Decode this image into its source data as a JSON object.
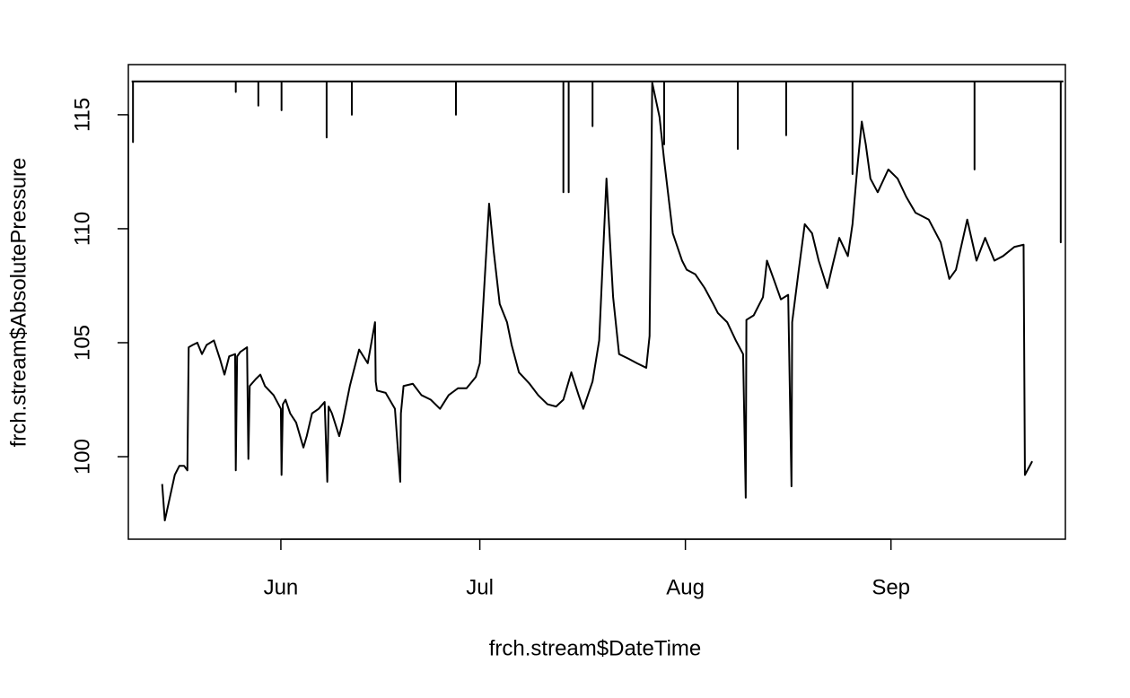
{
  "chart_data": {
    "type": "line",
    "x_label": "frch.stream$DateTime",
    "y_label": "frch.stream$AbsolutePressure",
    "xlim": [
      -23,
      118.3
    ],
    "ylim": [
      96.38,
      117.2
    ],
    "xticks": [
      {
        "value": 0,
        "label": "Jun"
      },
      {
        "value": 30,
        "label": "Jul"
      },
      {
        "value": 61,
        "label": "Aug"
      },
      {
        "value": 92,
        "label": "Sep"
      }
    ],
    "yticks": [
      100,
      105,
      110,
      115
    ],
    "series": [
      {
        "color": "#000000",
        "x": [
          -17.9,
          -17.5,
          -16.6,
          -16.0,
          -15.3,
          -14.6,
          -14.1,
          -13.9,
          -13.3,
          -12.6,
          -11.9,
          -11.2,
          -10.1,
          -9.2,
          -8.5,
          -7.8,
          -6.9,
          -6.8,
          -6.6,
          -6.1,
          -5.1,
          -4.9,
          -4.7,
          -3.8,
          -3.1,
          -2.4,
          -1.1,
          0,
          0.1,
          0.3,
          0.7,
          1.4,
          2.3,
          3.4,
          3.9,
          4.7,
          5.7,
          6.6,
          7.0,
          7.2,
          7.7,
          8.8,
          9.3,
          10.4,
          11.8,
          13.1,
          14.2,
          14.3,
          14.5,
          15.8,
          17.2,
          18.0,
          18.1,
          18.5,
          19.9,
          21.2,
          22.6,
          24.0,
          25.3,
          26.7,
          28.0,
          29.4,
          30.0,
          31.4,
          32.1,
          33.0,
          34.1,
          34.8,
          35.9,
          37.5,
          38.8,
          40.2,
          41.5,
          42.6,
          43.8,
          44.9,
          45.6,
          47.0,
          48.0,
          49.1,
          50.1,
          51.0,
          52.4,
          53.7,
          55.1,
          55.6,
          56.0,
          57.1,
          57.8,
          59.1,
          60.5,
          61.2,
          62.5,
          63.9,
          65.2,
          65.9,
          67.3,
          68.6,
          69.7,
          70.1,
          70.2,
          71.3,
          72.7,
          73.3,
          74.3,
          75.4,
          76.5,
          77.0,
          77.1,
          78.1,
          79.0,
          80.1,
          81.1,
          82.4,
          83.2,
          84.2,
          85.5,
          86.2,
          86.9,
          87.6,
          88.2,
          88.9,
          90.0,
          91.6,
          93.0,
          94.3,
          95.7,
          97.7,
          99.5,
          100.8,
          101.8,
          103.5,
          104.9,
          106.2,
          107.6,
          108.9,
          110.6,
          112.0,
          112.2,
          113.3
        ],
        "values": [
          98.8,
          97.2,
          98.4,
          99.2,
          99.6,
          99.6,
          99.4,
          104.8,
          104.9,
          105.0,
          104.5,
          104.9,
          105.1,
          104.3,
          103.6,
          104.4,
          104.5,
          99.4,
          104.4,
          104.6,
          104.8,
          99.9,
          103.1,
          103.4,
          103.6,
          103.1,
          102.7,
          102.1,
          99.2,
          102.3,
          102.5,
          101.9,
          101.5,
          100.4,
          100.9,
          101.9,
          102.1,
          102.4,
          98.9,
          102.2,
          101.9,
          100.9,
          101.5,
          103.1,
          104.7,
          104.1,
          105.9,
          103.3,
          102.9,
          102.8,
          102.1,
          98.9,
          101.9,
          103.1,
          103.2,
          102.7,
          102.5,
          102.1,
          102.7,
          103.0,
          103.0,
          103.5,
          104.1,
          111.1,
          109.0,
          106.7,
          105.9,
          104.9,
          103.7,
          103.2,
          102.7,
          102.3,
          102.2,
          102.5,
          103.7,
          102.7,
          102.1,
          103.3,
          105.1,
          112.2,
          107.0,
          104.5,
          104.3,
          104.1,
          103.9,
          105.3,
          116.4,
          114.9,
          113.0,
          109.8,
          108.6,
          108.2,
          108.0,
          107.4,
          106.7,
          106.3,
          105.9,
          105.1,
          104.5,
          98.2,
          106.0,
          106.2,
          107.0,
          108.6,
          107.8,
          106.9,
          107.1,
          98.7,
          105.9,
          108.2,
          110.2,
          109.8,
          108.6,
          107.4,
          108.4,
          109.6,
          108.8,
          110.2,
          112.6,
          114.7,
          113.7,
          112.2,
          111.6,
          112.6,
          112.2,
          111.4,
          110.7,
          110.4,
          109.4,
          107.8,
          108.2,
          110.4,
          108.6,
          109.6,
          108.6,
          108.8,
          109.2,
          109.3,
          99.2,
          99.8
        ]
      },
      {
        "color": "#000000",
        "x": [
          -22.5,
          -22.3,
          -22.3,
          -22.3,
          -6.8,
          -6.8,
          -6.8,
          -3.4,
          -3.4,
          -3.4,
          0.1,
          0.1,
          0.1,
          6.9,
          6.9,
          6.9,
          10.7,
          10.7,
          10.7,
          26.4,
          26.4,
          26.4,
          42.6,
          42.6,
          42.6,
          43.4,
          43.4,
          43.4,
          47.0,
          47.0,
          47.0,
          57.8,
          57.8,
          57.8,
          68.9,
          68.9,
          68.9,
          76.2,
          76.2,
          76.2,
          86.2,
          86.2,
          86.2,
          104.6,
          104.6,
          104.6,
          117.6,
          117.6,
          117.6,
          118.0
        ],
        "values": [
          116.46,
          116.46,
          113.8,
          116.46,
          116.46,
          116.0,
          116.46,
          116.46,
          115.4,
          116.46,
          116.46,
          115.2,
          116.46,
          116.46,
          114.0,
          116.46,
          116.46,
          115.0,
          116.46,
          116.46,
          115.0,
          116.46,
          116.46,
          111.6,
          116.46,
          116.46,
          111.6,
          116.46,
          116.46,
          114.5,
          116.46,
          116.46,
          113.7,
          116.46,
          116.46,
          113.5,
          116.46,
          116.46,
          114.1,
          116.46,
          116.46,
          112.4,
          116.46,
          116.46,
          112.6,
          116.46,
          116.46,
          109.4,
          116.46,
          116.46
        ]
      }
    ]
  }
}
